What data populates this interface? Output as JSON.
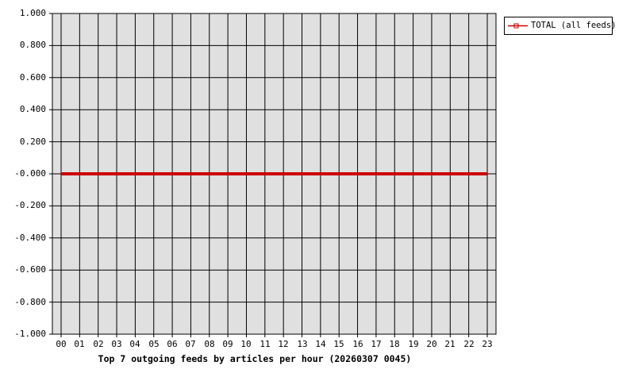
{
  "chart_data": {
    "type": "line",
    "title": "Top 7 outgoing feeds by articles per hour (20260307 0045)",
    "xlabel": "",
    "ylabel": "",
    "x_categories": [
      "00",
      "01",
      "02",
      "03",
      "04",
      "05",
      "06",
      "07",
      "08",
      "09",
      "10",
      "11",
      "12",
      "13",
      "14",
      "15",
      "16",
      "17",
      "18",
      "19",
      "20",
      "21",
      "22",
      "23"
    ],
    "y_tick_labels": [
      "1.000",
      "0.800",
      "0.600",
      "0.400",
      "0.200",
      "-0.000",
      "-0.200",
      "-0.400",
      "-0.600",
      "-0.800",
      "-1.000"
    ],
    "ylim": [
      -1.0,
      1.0
    ],
    "grid": true,
    "legend_position": "outside-top-right",
    "series": [
      {
        "name": "TOTAL (all feeds)",
        "color": "#cc0000",
        "marker": "open-square",
        "values": [
          0,
          0,
          0,
          0,
          0,
          0,
          0,
          0,
          0,
          0,
          0,
          0,
          0,
          0,
          0,
          0,
          0,
          0,
          0,
          0,
          0,
          0,
          0,
          0
        ]
      }
    ],
    "colors": {
      "plot_background": "#e0e0e0",
      "grid": "#000000",
      "axis": "#000000",
      "page_background": "#ffffff",
      "series_total": "#cc0000"
    }
  }
}
